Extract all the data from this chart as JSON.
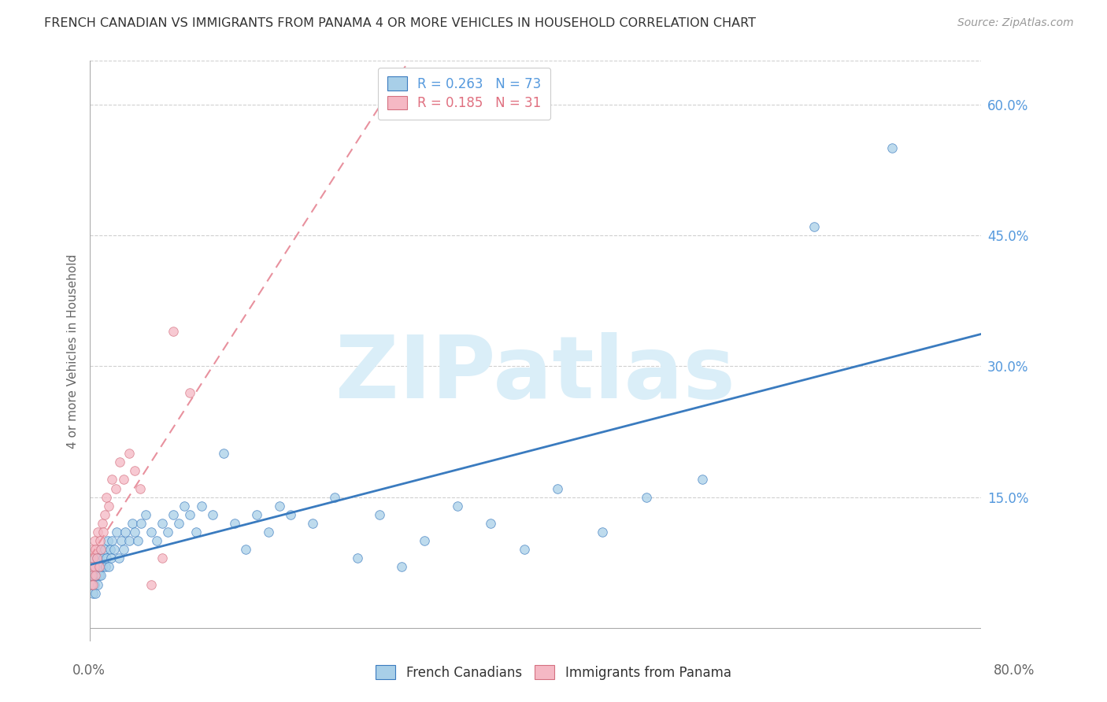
{
  "title": "FRENCH CANADIAN VS IMMIGRANTS FROM PANAMA 4 OR MORE VEHICLES IN HOUSEHOLD CORRELATION CHART",
  "source": "Source: ZipAtlas.com",
  "ylabel": "4 or more Vehicles in Household",
  "right_yticks": [
    "60.0%",
    "45.0%",
    "30.0%",
    "15.0%"
  ],
  "right_ytick_vals": [
    0.6,
    0.45,
    0.3,
    0.15
  ],
  "xlim": [
    0.0,
    0.8
  ],
  "ylim": [
    -0.015,
    0.65
  ],
  "legend_blue_R": "0.263",
  "legend_blue_N": "73",
  "legend_pink_R": "0.185",
  "legend_pink_N": "31",
  "blue_color": "#a8cfe8",
  "pink_color": "#f5b8c4",
  "trendline_blue_color": "#3a7bbf",
  "trendline_pink_color": "#e8919e",
  "blue_scatter": {
    "x": [
      0.001,
      0.002,
      0.002,
      0.003,
      0.003,
      0.004,
      0.004,
      0.005,
      0.005,
      0.006,
      0.006,
      0.007,
      0.007,
      0.008,
      0.008,
      0.009,
      0.01,
      0.01,
      0.011,
      0.012,
      0.013,
      0.014,
      0.015,
      0.016,
      0.017,
      0.018,
      0.019,
      0.02,
      0.022,
      0.024,
      0.026,
      0.028,
      0.03,
      0.032,
      0.035,
      0.038,
      0.04,
      0.043,
      0.046,
      0.05,
      0.055,
      0.06,
      0.065,
      0.07,
      0.075,
      0.08,
      0.085,
      0.09,
      0.095,
      0.1,
      0.11,
      0.12,
      0.13,
      0.14,
      0.15,
      0.16,
      0.17,
      0.18,
      0.2,
      0.22,
      0.24,
      0.26,
      0.28,
      0.3,
      0.33,
      0.36,
      0.39,
      0.42,
      0.46,
      0.5,
      0.55,
      0.65,
      0.72
    ],
    "y": [
      0.06,
      0.05,
      0.07,
      0.04,
      0.08,
      0.05,
      0.06,
      0.07,
      0.04,
      0.06,
      0.08,
      0.05,
      0.07,
      0.06,
      0.08,
      0.07,
      0.06,
      0.09,
      0.07,
      0.08,
      0.09,
      0.07,
      0.08,
      0.1,
      0.07,
      0.09,
      0.08,
      0.1,
      0.09,
      0.11,
      0.08,
      0.1,
      0.09,
      0.11,
      0.1,
      0.12,
      0.11,
      0.1,
      0.12,
      0.13,
      0.11,
      0.1,
      0.12,
      0.11,
      0.13,
      0.12,
      0.14,
      0.13,
      0.11,
      0.14,
      0.13,
      0.2,
      0.12,
      0.09,
      0.13,
      0.11,
      0.14,
      0.13,
      0.12,
      0.15,
      0.08,
      0.13,
      0.07,
      0.1,
      0.14,
      0.12,
      0.09,
      0.16,
      0.11,
      0.15,
      0.17,
      0.46,
      0.55
    ]
  },
  "pink_scatter": {
    "x": [
      0.001,
      0.001,
      0.002,
      0.002,
      0.003,
      0.003,
      0.004,
      0.004,
      0.005,
      0.005,
      0.006,
      0.007,
      0.008,
      0.009,
      0.01,
      0.011,
      0.012,
      0.013,
      0.015,
      0.017,
      0.02,
      0.023,
      0.027,
      0.03,
      0.035,
      0.04,
      0.045,
      0.055,
      0.065,
      0.075,
      0.09
    ],
    "y": [
      0.05,
      0.07,
      0.06,
      0.09,
      0.05,
      0.08,
      0.07,
      0.1,
      0.06,
      0.09,
      0.08,
      0.11,
      0.07,
      0.1,
      0.09,
      0.12,
      0.11,
      0.13,
      0.15,
      0.14,
      0.17,
      0.16,
      0.19,
      0.17,
      0.2,
      0.18,
      0.16,
      0.05,
      0.08,
      0.34,
      0.27
    ]
  },
  "background_color": "#ffffff",
  "grid_color": "#d0d0d0",
  "watermark_text": "ZIPatlas",
  "watermark_color": "#daeef8",
  "watermark_fontsize": 80,
  "title_fontsize": 11.5,
  "source_fontsize": 10,
  "axis_label_fontsize": 11,
  "tick_fontsize": 12,
  "legend_fontsize": 12
}
